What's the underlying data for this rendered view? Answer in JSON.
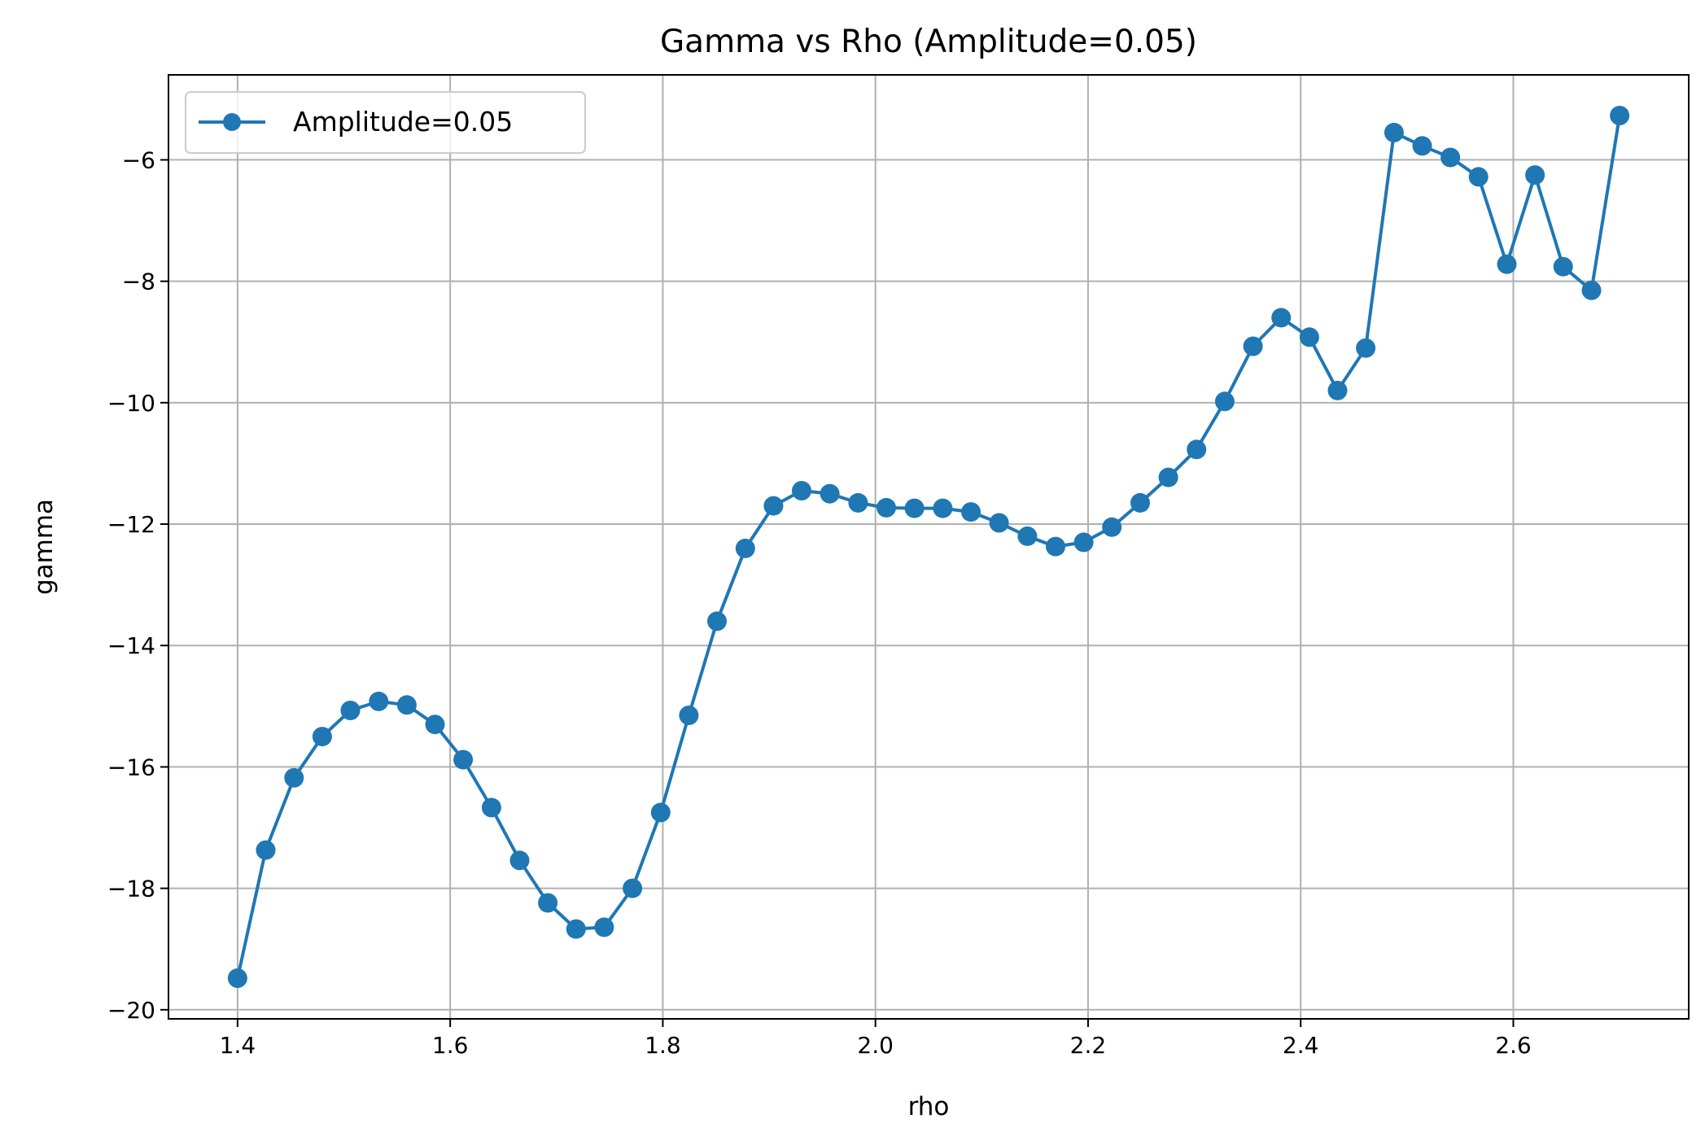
{
  "chart_data": {
    "type": "line",
    "title": "Gamma vs Rho (Amplitude=0.05)",
    "xlabel": "rho",
    "ylabel": "gamma",
    "xlim": [
      1.335,
      2.765
    ],
    "ylim": [
      -20.15,
      -4.6
    ],
    "xticks": [
      1.4,
      1.6,
      1.8,
      2.0,
      2.2,
      2.4,
      2.6
    ],
    "xtick_labels": [
      "1.4",
      "1.6",
      "1.8",
      "2.0",
      "2.2",
      "2.4",
      "2.6"
    ],
    "yticks": [
      -20,
      -18,
      -16,
      -14,
      -12,
      -10,
      -8,
      -6
    ],
    "ytick_labels": [
      "−20",
      "−18",
      "−16",
      "−14",
      "−12",
      "−10",
      "−8",
      "−6"
    ],
    "grid": true,
    "legend_position": "top-left",
    "color": "#1f77b4",
    "series": [
      {
        "name": "Amplitude=0.05",
        "x": [
          1.4,
          1.4265,
          1.4531,
          1.4796,
          1.5061,
          1.5327,
          1.5592,
          1.5857,
          1.6122,
          1.6388,
          1.6653,
          1.6918,
          1.7184,
          1.7449,
          1.7714,
          1.798,
          1.8245,
          1.851,
          1.8776,
          1.9041,
          1.9306,
          1.9571,
          1.9837,
          2.0102,
          2.0367,
          2.0633,
          2.0898,
          2.1163,
          2.1429,
          2.1694,
          2.1959,
          2.2224,
          2.249,
          2.2755,
          2.302,
          2.3286,
          2.3551,
          2.3816,
          2.4082,
          2.4347,
          2.4612,
          2.4878,
          2.5143,
          2.5408,
          2.5673,
          2.5939,
          2.6204,
          2.6469,
          2.6735,
          2.7
        ],
        "y": [
          -19.48,
          -17.37,
          -16.18,
          -15.5,
          -15.07,
          -14.92,
          -14.98,
          -15.3,
          -15.88,
          -16.67,
          -17.54,
          -18.24,
          -18.67,
          -18.64,
          -18.0,
          -16.75,
          -15.15,
          -13.6,
          -12.4,
          -11.7,
          -11.45,
          -11.5,
          -11.65,
          -11.73,
          -11.74,
          -11.74,
          -11.8,
          -11.98,
          -12.2,
          -12.37,
          -12.3,
          -12.05,
          -11.65,
          -11.23,
          -10.77,
          -9.98,
          -9.07,
          -8.6,
          -8.92,
          -9.8,
          -9.1,
          -5.55,
          -5.77,
          -5.96,
          -6.28,
          -7.72,
          -6.25,
          -7.76,
          -8.15,
          -5.27
        ]
      }
    ]
  }
}
